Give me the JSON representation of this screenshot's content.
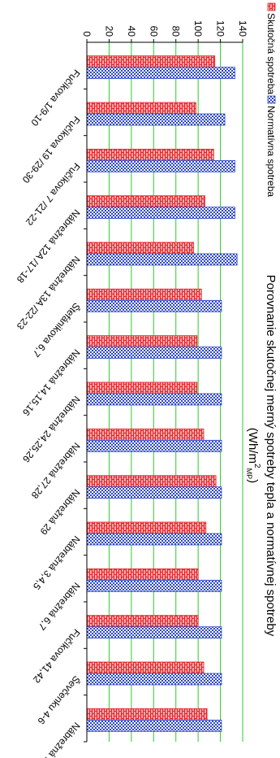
{
  "chart_data": {
    "type": "bar",
    "title": "Porovnanie skutočnej merný spotreby tepla a normatívnej spotreby",
    "unit_label": {
      "base": "(Wh/m",
      "sup": "2",
      "sub": "MP",
      "close": ")"
    },
    "categories": [
      "Fučíkova 1/9-10",
      "Fučíkova 19 /29-30",
      "Fučíkova 7 /21-22",
      "Nábrežná 12A /17-18",
      "Nábrežná 13A /22-23",
      "Štefánikova 6,7",
      "Nábrežná 14,15,16",
      "Nábrežná 24,25,26",
      "Nábrežná 27,28",
      "Nábrežná 29",
      "Nábrežná 3,4,5",
      "Nábrežná 6,7",
      "Fučíkova 41,42",
      "Ševčenku 4-6",
      "Nábrežná 12,13"
    ],
    "series": [
      {
        "name": "Skutočná spotreba",
        "color": "#e8242a",
        "pattern": "brick",
        "values": [
          115,
          98,
          114,
          106,
          96,
          103,
          99,
          99,
          105,
          116,
          107,
          100,
          100,
          105,
          108
        ]
      },
      {
        "name": "Normatívna spotreba",
        "color": "#2b46c8",
        "pattern": "dots",
        "values": [
          133,
          124,
          133,
          133,
          135,
          121,
          121,
          121,
          121,
          121,
          121,
          121,
          121,
          121,
          121
        ]
      }
    ],
    "ylim": [
      0,
      140
    ],
    "yticks": [
      0,
      20,
      40,
      60,
      80,
      100,
      120,
      140
    ],
    "grid": true,
    "legend_position": "top-left"
  }
}
